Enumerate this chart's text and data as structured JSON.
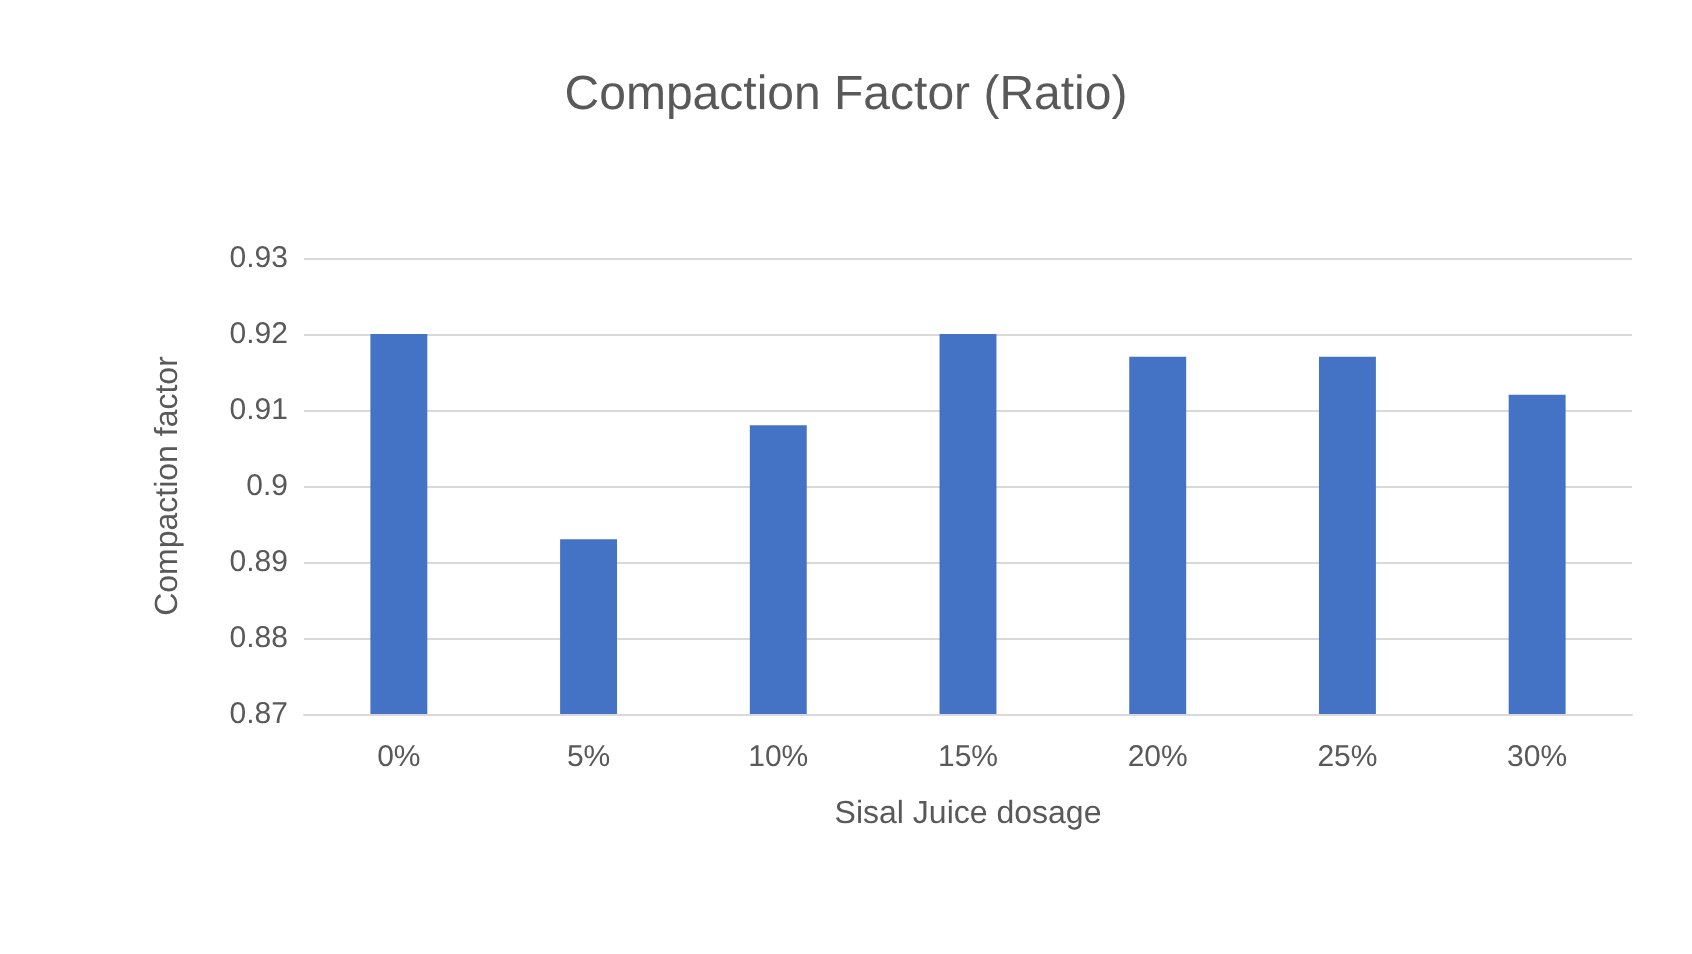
{
  "chart_data": {
    "type": "bar",
    "title": "Compaction Factor (Ratio)",
    "xlabel": "Sisal Juice dosage",
    "ylabel": "Compaction factor",
    "categories": [
      "0%",
      "5%",
      "10%",
      "15%",
      "20%",
      "25%",
      "30%"
    ],
    "values": [
      0.92,
      0.893,
      0.908,
      0.92,
      0.917,
      0.917,
      0.912
    ],
    "color": "#4472c4",
    "ylim": [
      0.87,
      0.93
    ],
    "yticks": [
      0.87,
      0.88,
      0.89,
      0.9,
      0.91,
      0.92,
      0.93
    ],
    "grid": "y"
  }
}
